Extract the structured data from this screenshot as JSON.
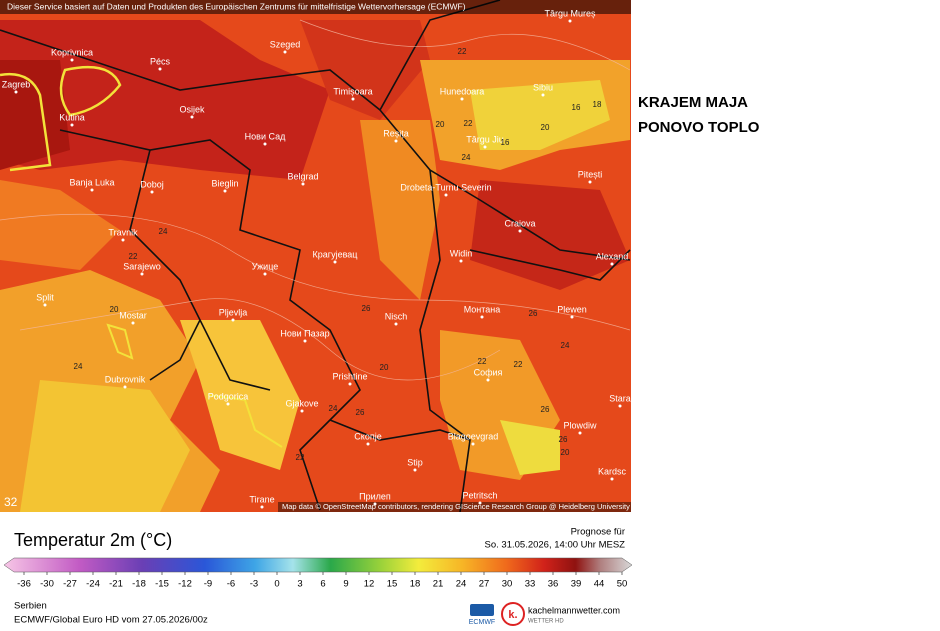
{
  "header": {
    "notice": "Dieser Service basiert auf Daten und Produkten des Europäischen Zentrums für mittelfristige Wettervorhersage (ECMWF)"
  },
  "headline": [
    "KRAJEM MAJA",
    "PONOVO TOPLO"
  ],
  "map": {
    "cities": [
      "Koprivnica",
      "Pécs",
      "Szeged",
      "Târgu Mureș",
      "Zagreb",
      "Kutina",
      "Osijek",
      "Timișoara",
      "Hunedoara",
      "Sibiu",
      "Нови Сад",
      "Reșița",
      "Târgu Jiu",
      "Pitești",
      "Banja Luka",
      "Doboj",
      "Bieglin",
      "Belgrad",
      "Drobeta-Turnu Severin",
      "Craiova",
      "Travnik",
      "Sarajewo",
      "Ужице",
      "Крагујевац",
      "Widin",
      "Alexand",
      "Split",
      "Mostar",
      "Pljevlja",
      "Нови Пазар",
      "Nisch",
      "Монтана",
      "Plewen",
      "Dubrovnik",
      "Prishtine",
      "София",
      "Podgorica",
      "Gjakove",
      "Скопје",
      "Blagoevgrad",
      "Plowdiw",
      "Stip",
      "Tirane",
      "Прилеп",
      "Petritsch",
      "Kardsc",
      "Stara"
    ],
    "contour_labels": [
      22,
      20,
      22,
      16,
      18,
      16,
      20,
      24,
      24,
      22,
      20,
      24,
      26,
      20,
      26,
      24,
      22,
      22,
      24,
      26,
      26,
      22,
      26,
      20
    ],
    "attribution": "Map data © OpenStreetMap contributors, rendering GIScience Research Group @ Heidelberg University",
    "corner_label": "32"
  },
  "legend": {
    "title": "Temperatur 2m (°C)",
    "ticks": [
      -36,
      -30,
      -27,
      -24,
      -21,
      -18,
      -15,
      -12,
      -9,
      -6,
      -3,
      0,
      3,
      6,
      9,
      12,
      15,
      18,
      21,
      24,
      27,
      30,
      33,
      36,
      39,
      44,
      50
    ]
  },
  "forecast": {
    "label": "Prognose für",
    "time": "So. 31.05.2026, 14:00 Uhr MESZ"
  },
  "footer": {
    "region": "Serbien",
    "model": "ECMWF/Global Euro HD vom  27.05.2026/00z",
    "logos": [
      "ECMWF",
      "kachelmannwetter.com",
      "WETTER HD"
    ]
  }
}
